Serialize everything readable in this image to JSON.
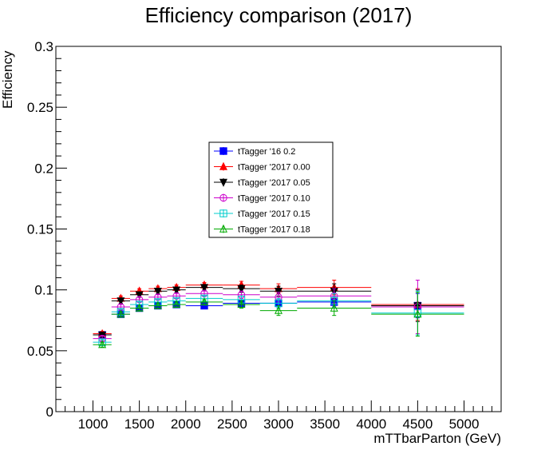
{
  "chart_data": {
    "type": "scatter",
    "title": "Efficiency comparison (2017)",
    "xlabel": "mTTbarParton (GeV)",
    "ylabel": "Efficiency",
    "xlim": [
      600,
      5400
    ],
    "ylim": [
      0,
      0.3
    ],
    "xticks": [
      "1000",
      "1500",
      "2000",
      "2500",
      "3000",
      "3500",
      "4000",
      "4500",
      "5000"
    ],
    "yticks": [
      "0",
      "0.05",
      "0.1",
      "0.15",
      "0.2",
      "0.25",
      "0.3"
    ],
    "legend_position": "center",
    "grid": false,
    "bins": [
      {
        "x": 1100,
        "lo": 1000,
        "hi": 1200
      },
      {
        "x": 1300,
        "lo": 1200,
        "hi": 1400
      },
      {
        "x": 1500,
        "lo": 1400,
        "hi": 1600
      },
      {
        "x": 1700,
        "lo": 1600,
        "hi": 1800
      },
      {
        "x": 1900,
        "lo": 1800,
        "hi": 2000
      },
      {
        "x": 2200,
        "lo": 2000,
        "hi": 2400
      },
      {
        "x": 2600,
        "lo": 2400,
        "hi": 2800
      },
      {
        "x": 3000,
        "lo": 2800,
        "hi": 3200
      },
      {
        "x": 3600,
        "lo": 3200,
        "hi": 4000
      },
      {
        "x": 4500,
        "lo": 4000,
        "hi": 5000
      }
    ],
    "series": [
      {
        "name": "tTagger '16 0.2",
        "color": "#0000ff",
        "marker": "square-filled",
        "values": [
          0.063,
          0.08,
          0.085,
          0.087,
          0.088,
          0.087,
          0.089,
          0.089,
          0.09,
          0.087
        ],
        "errors": [
          0.002,
          0.002,
          0.002,
          0.002,
          0.002,
          0.002,
          0.002,
          0.003,
          0.004,
          0.01
        ]
      },
      {
        "name": "tTagger '2017 0.00",
        "color": "#ff0000",
        "marker": "triangle-up-filled",
        "values": [
          0.064,
          0.093,
          0.099,
          0.101,
          0.102,
          0.104,
          0.104,
          0.101,
          0.102,
          0.088
        ],
        "errors": [
          0.002,
          0.002,
          0.002,
          0.002,
          0.002,
          0.002,
          0.003,
          0.004,
          0.006,
          0.013
        ]
      },
      {
        "name": "tTagger '2017 0.05",
        "color": "#000000",
        "marker": "triangle-down-filled",
        "values": [
          0.063,
          0.091,
          0.096,
          0.099,
          0.1,
          0.102,
          0.101,
          0.099,
          0.099,
          0.087
        ],
        "errors": [
          0.002,
          0.002,
          0.002,
          0.002,
          0.002,
          0.002,
          0.003,
          0.004,
          0.006,
          0.013
        ]
      },
      {
        "name": "tTagger '2017 0.10",
        "color": "#cc00cc",
        "marker": "circle-open",
        "values": [
          0.06,
          0.086,
          0.092,
          0.094,
          0.095,
          0.097,
          0.096,
          0.094,
          0.095,
          0.086
        ],
        "errors": [
          0.002,
          0.002,
          0.002,
          0.002,
          0.002,
          0.002,
          0.003,
          0.004,
          0.006,
          0.022
        ]
      },
      {
        "name": "tTagger '2017 0.15",
        "color": "#00cccc",
        "marker": "square-open",
        "values": [
          0.057,
          0.082,
          0.088,
          0.09,
          0.091,
          0.093,
          0.092,
          0.089,
          0.091,
          0.081
        ],
        "errors": [
          0.002,
          0.002,
          0.002,
          0.002,
          0.002,
          0.002,
          0.003,
          0.004,
          0.006,
          0.018
        ]
      },
      {
        "name": "tTagger '2017 0.18",
        "color": "#00aa00",
        "marker": "triangle-up-open",
        "values": [
          0.055,
          0.08,
          0.085,
          0.087,
          0.088,
          0.09,
          0.088,
          0.083,
          0.085,
          0.08
        ],
        "errors": [
          0.002,
          0.002,
          0.002,
          0.002,
          0.002,
          0.002,
          0.003,
          0.004,
          0.006,
          0.018
        ]
      }
    ]
  }
}
